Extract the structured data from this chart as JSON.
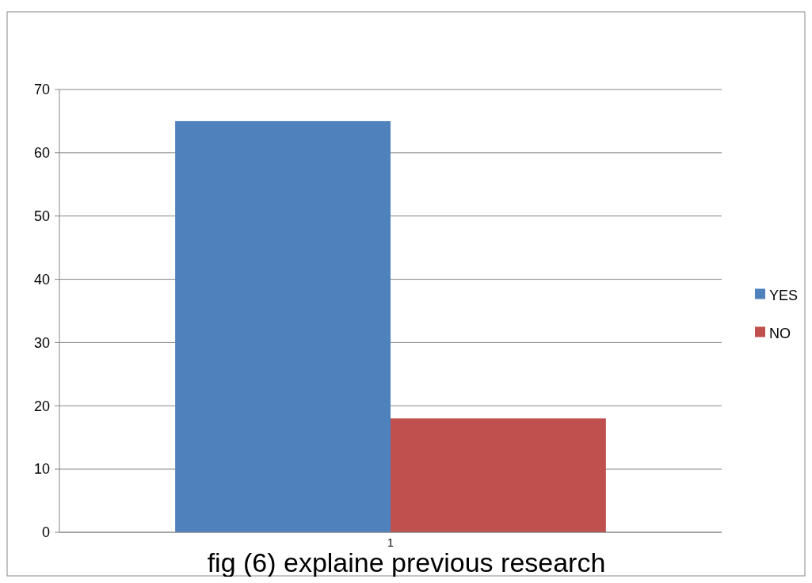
{
  "chart_data": {
    "type": "bar",
    "title": "fig (6) explaine previous research",
    "categories": [
      "1"
    ],
    "series": [
      {
        "name": "YES",
        "color": "#4f81bd",
        "values": [
          65
        ]
      },
      {
        "name": "NO",
        "color": "#c0504d",
        "values": [
          18
        ]
      }
    ],
    "ylim": [
      0,
      70
    ],
    "yticks": [
      0,
      10,
      20,
      30,
      40,
      50,
      60,
      70
    ],
    "grid": "y",
    "legend": "right"
  }
}
